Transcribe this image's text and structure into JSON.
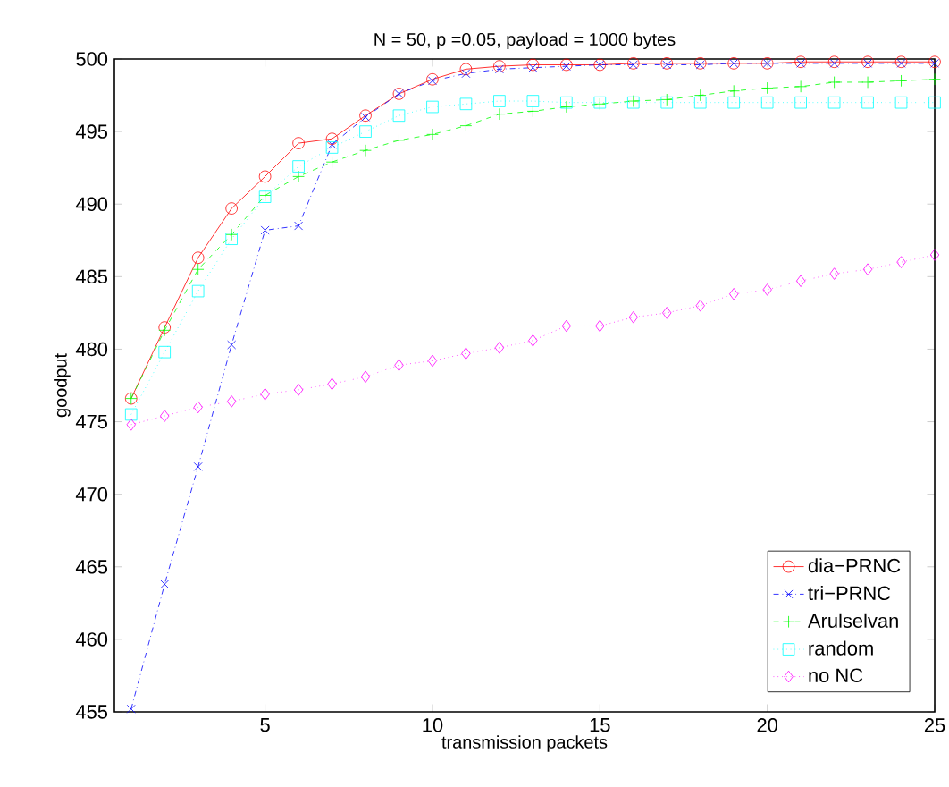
{
  "chart_data": {
    "type": "line",
    "title": "N = 50, p =0.05, payload = 1000 bytes",
    "xlabel": "transmission packets",
    "ylabel": "goodput",
    "x": [
      1,
      2,
      3,
      4,
      5,
      6,
      7,
      8,
      9,
      10,
      11,
      12,
      13,
      14,
      15,
      16,
      17,
      18,
      19,
      20,
      21,
      22,
      23,
      24,
      25
    ],
    "xlim": [
      0.5,
      25
    ],
    "ylim": [
      455,
      500
    ],
    "xticks": [
      5,
      10,
      15,
      20,
      25
    ],
    "yticks": [
      455,
      460,
      465,
      470,
      475,
      480,
      485,
      490,
      495,
      500
    ],
    "grid": false,
    "legend": "bottom right",
    "series": [
      {
        "name": "dia−PRNC",
        "color": "#ff0000",
        "marker": "circle",
        "line_style": "solid",
        "values": [
          476.6,
          481.5,
          486.3,
          489.7,
          491.9,
          494.2,
          494.5,
          496.1,
          497.6,
          498.6,
          499.3,
          499.5,
          499.6,
          499.6,
          499.6,
          499.7,
          499.7,
          499.7,
          499.7,
          499.7,
          499.8,
          499.8,
          499.8,
          499.8,
          499.8
        ]
      },
      {
        "name": "tri−PRNC",
        "color": "#0000ff",
        "marker": "cross",
        "line_style": "dashdot",
        "values": [
          455.2,
          463.8,
          471.9,
          480.3,
          488.2,
          488.5,
          494.1,
          496.0,
          497.6,
          498.5,
          499.0,
          499.3,
          499.4,
          499.5,
          499.6,
          499.6,
          499.6,
          499.6,
          499.7,
          499.7,
          499.7,
          499.7,
          499.7,
          499.7,
          499.7
        ]
      },
      {
        "name": "Arulselvan",
        "color": "#00ff00",
        "marker": "plus",
        "line_style": "dashed",
        "values": [
          476.6,
          481.3,
          485.5,
          487.9,
          490.6,
          491.9,
          492.9,
          493.7,
          494.4,
          494.8,
          495.4,
          496.2,
          496.4,
          496.7,
          496.9,
          497.1,
          497.2,
          497.5,
          497.8,
          498.0,
          498.1,
          498.4,
          498.4,
          498.5,
          498.6
        ]
      },
      {
        "name": "random",
        "color": "#00ffff",
        "marker": "square",
        "line_style": "dotted",
        "values": [
          475.5,
          479.8,
          484.0,
          487.6,
          490.5,
          492.6,
          493.9,
          495.0,
          496.1,
          496.7,
          496.9,
          497.1,
          497.1,
          497.0,
          497.0,
          497.0,
          497.0,
          497.0,
          497.0,
          497.0,
          497.0,
          497.0,
          497.0,
          497.0,
          497.0
        ]
      },
      {
        "name": "no NC",
        "color": "#ff00ff",
        "marker": "diamond",
        "line_style": "dotted",
        "values": [
          474.8,
          475.4,
          476.0,
          476.4,
          476.9,
          477.2,
          477.6,
          478.1,
          478.9,
          479.2,
          479.7,
          480.1,
          480.6,
          481.6,
          481.6,
          482.2,
          482.5,
          483.0,
          483.8,
          484.1,
          484.7,
          485.2,
          485.5,
          486.0,
          486.5
        ]
      }
    ]
  }
}
